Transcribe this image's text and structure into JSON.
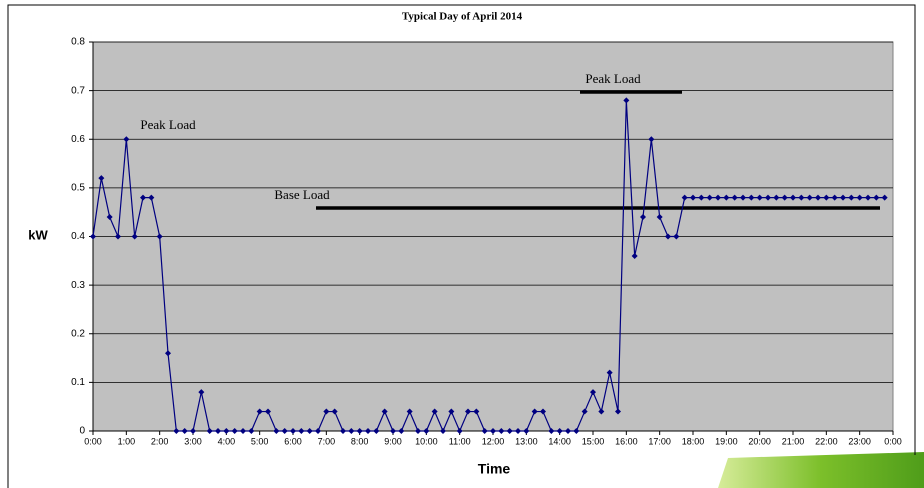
{
  "chart_data": {
    "type": "line",
    "title": "Typical Day of April 2014",
    "y_label": "kW",
    "x_label": "Time",
    "annotations": [
      "Peak Load",
      "Peak Load",
      "Base Load"
    ],
    "x": [
      0,
      15,
      30,
      45,
      60,
      75,
      90,
      105,
      120,
      135,
      150,
      165,
      180,
      195,
      210,
      225,
      240,
      255,
      270,
      285,
      300,
      315,
      330,
      345,
      360,
      375,
      390,
      405,
      420,
      435,
      450,
      465,
      480,
      495,
      510,
      525,
      540,
      555,
      570,
      585,
      600,
      615,
      630,
      645,
      660,
      675,
      690,
      705,
      720,
      735,
      750,
      765,
      780,
      795,
      810,
      825,
      840,
      855,
      870,
      885,
      900,
      915,
      930,
      945,
      960,
      975,
      990,
      1005,
      1020,
      1035,
      1050,
      1065,
      1080,
      1095,
      1110,
      1125,
      1140,
      1155,
      1170,
      1185,
      1200,
      1215,
      1230,
      1245,
      1260,
      1275,
      1290,
      1305,
      1320,
      1335,
      1350,
      1365,
      1380,
      1395,
      1410,
      1425
    ],
    "series": [
      {
        "color": "#000080",
        "values": [
          0.4,
          0.52,
          0.44,
          0.4,
          0.6,
          0.4,
          0.48,
          0.48,
          0.4,
          0.16,
          0,
          0,
          0,
          0.08,
          0,
          0,
          0,
          0,
          0,
          0,
          0.04,
          0.04,
          0,
          0,
          0,
          0,
          0,
          0,
          0.04,
          0.04,
          0,
          0,
          0,
          0,
          0,
          0.04,
          0,
          0,
          0.04,
          0,
          0,
          0.04,
          0,
          0.04,
          0,
          0.04,
          0.04,
          0,
          0,
          0,
          0,
          0,
          0,
          0.04,
          0.04,
          0,
          0,
          0,
          0,
          0.04,
          0.08,
          0.04,
          0.12,
          0.04,
          0.68,
          0.36,
          0.44,
          0.6,
          0.44,
          0.4,
          0.4,
          0.48,
          0.48,
          0.48,
          0.48,
          0.48,
          0.48,
          0.48,
          0.48,
          0.48,
          0.48,
          0.48,
          0.48,
          0.48,
          0.48,
          0.48,
          0.48,
          0.48,
          0.48,
          0.48,
          0.48,
          0.48,
          0.48,
          0.48,
          0.48,
          0.48
        ]
      }
    ],
    "xlim": [
      0,
      1440
    ],
    "xticks": [
      {
        "value": 0,
        "label": "0:00"
      },
      {
        "value": 60,
        "label": "1:00"
      },
      {
        "value": 120,
        "label": "2:00"
      },
      {
        "value": 180,
        "label": "3:00"
      },
      {
        "value": 240,
        "label": "4:00"
      },
      {
        "value": 300,
        "label": "5:00"
      },
      {
        "value": 360,
        "label": "6:00"
      },
      {
        "value": 420,
        "label": "7:00"
      },
      {
        "value": 480,
        "label": "8:00"
      },
      {
        "value": 540,
        "label": "9:00"
      },
      {
        "value": 600,
        "label": "10:00"
      },
      {
        "value": 660,
        "label": "11:00"
      },
      {
        "value": 720,
        "label": "12:00"
      },
      {
        "value": 780,
        "label": "13:00"
      },
      {
        "value": 840,
        "label": "14:00"
      },
      {
        "value": 900,
        "label": "15:00"
      },
      {
        "value": 960,
        "label": "16:00"
      },
      {
        "value": 1020,
        "label": "17:00"
      },
      {
        "value": 1080,
        "label": "18:00"
      },
      {
        "value": 1140,
        "label": "19:00"
      },
      {
        "value": 1200,
        "label": "20:00"
      },
      {
        "value": 1260,
        "label": "21:00"
      },
      {
        "value": 1320,
        "label": "22:00"
      },
      {
        "value": 1380,
        "label": "23:00"
      },
      {
        "value": 1440,
        "label": "0:00"
      }
    ],
    "ylim": [
      0,
      0.8
    ],
    "yticks": [
      0,
      0.1,
      0.2,
      0.3,
      0.4,
      0.5,
      0.6,
      0.7,
      0.8
    ],
    "grid": true,
    "background": "#c0c0c0"
  }
}
